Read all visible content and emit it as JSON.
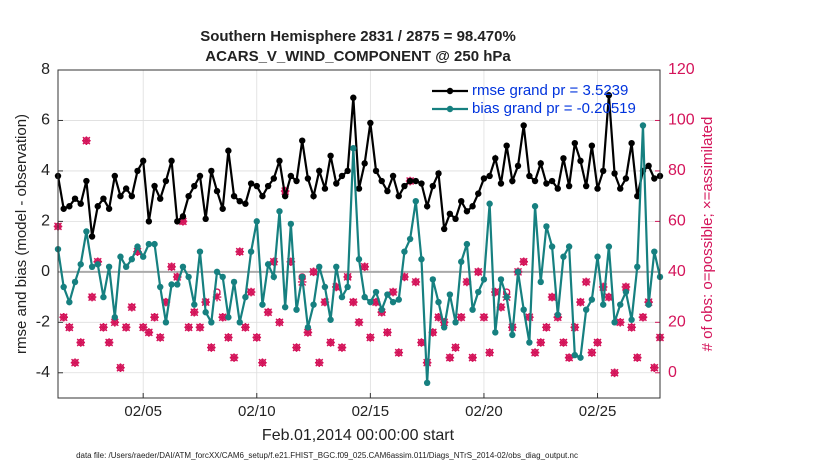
{
  "chart_data": {
    "type": "line",
    "title": "Southern Hemisphere 2831 / 2875 = 98.470%",
    "subtitle": "ACARS_V_WIND_COMPONENT @ 250 hPa",
    "xlabel": "Feb.01,2014 00:00:00 start",
    "ylabel": "rmse and bias (model - observation)",
    "y2label": "# of obs: o=possible; ×=assimilated",
    "footnote": "data file: /Users/raeder/DAI/ATM_forcXX/CAM6_setup/f.e21.FHIST_BGC.f09_025.CAM6assim.011/Diags_NTrS_2014-02/obs_diag_output.nc",
    "xlim": [
      1.25,
      27.75
    ],
    "xticks": [
      {
        "value": 5,
        "label": "02/05"
      },
      {
        "value": 10,
        "label": "02/10"
      },
      {
        "value": 15,
        "label": "02/15"
      },
      {
        "value": 20,
        "label": "02/20"
      },
      {
        "value": 25,
        "label": "02/25"
      }
    ],
    "ylim": [
      -5,
      8
    ],
    "yticks": [
      -4,
      -2,
      0,
      2,
      4,
      6,
      8
    ],
    "y2lim": [
      -10,
      120
    ],
    "y2ticks": [
      0,
      20,
      40,
      60,
      80,
      100,
      120
    ],
    "zero_line": 0,
    "grid": true,
    "legend": "upper right",
    "x": [
      1.25,
      1.5,
      1.75,
      2,
      2.25,
      2.5,
      2.75,
      3,
      3.25,
      3.5,
      3.75,
      4,
      4.25,
      4.5,
      4.75,
      5,
      5.25,
      5.5,
      5.75,
      6,
      6.25,
      6.5,
      6.75,
      7,
      7.25,
      7.5,
      7.75,
      8,
      8.25,
      8.5,
      8.75,
      9,
      9.25,
      9.5,
      9.75,
      10,
      10.25,
      10.5,
      10.75,
      11,
      11.25,
      11.5,
      11.75,
      12,
      12.25,
      12.5,
      12.75,
      13,
      13.25,
      13.5,
      13.75,
      14,
      14.25,
      14.5,
      14.75,
      15,
      15.25,
      15.5,
      15.75,
      16,
      16.25,
      16.5,
      16.75,
      17,
      17.25,
      17.5,
      17.75,
      18,
      18.25,
      18.5,
      18.75,
      19,
      19.25,
      19.5,
      19.75,
      20,
      20.25,
      20.5,
      20.75,
      21,
      21.25,
      21.5,
      21.75,
      22,
      22.25,
      22.5,
      22.75,
      23,
      23.25,
      23.5,
      23.75,
      24,
      24.25,
      24.5,
      24.75,
      25,
      25.25,
      25.5,
      25.75,
      26,
      26.25,
      26.5,
      26.75,
      27,
      27.25,
      27.5,
      27.75
    ],
    "series": [
      {
        "name": "rmse grand pr = 3.5239",
        "color": "#000000",
        "marker": "filled-circle",
        "values": [
          3.8,
          2.5,
          2.6,
          2.9,
          2.7,
          3.6,
          1.4,
          2.6,
          2.9,
          2.5,
          3.8,
          3.0,
          3.3,
          3.0,
          4.0,
          4.4,
          2.0,
          3.4,
          2.9,
          3.6,
          4.4,
          2.0,
          2.2,
          3.0,
          3.4,
          3.8,
          2.1,
          4.0,
          3.2,
          2.5,
          4.8,
          3.0,
          2.8,
          2.7,
          3.5,
          3.4,
          3.0,
          3.4,
          3.7,
          4.4,
          3.0,
          3.8,
          3.6,
          5.2,
          3.7,
          3.0,
          4.0,
          3.3,
          4.6,
          3.5,
          3.8,
          4.0,
          6.9,
          3.3,
          4.3,
          5.9,
          4.0,
          3.6,
          3.2,
          3.8,
          3.0,
          3.4,
          3.6,
          3.6,
          3.5,
          2.6,
          3.4,
          3.9,
          1.7,
          2.3,
          2.1,
          2.8,
          2.4,
          2.6,
          3.1,
          3.7,
          3.8,
          4.5,
          3.5,
          5.0,
          3.6,
          4.2,
          5.8,
          3.8,
          3.6,
          4.3,
          3.5,
          3.6,
          3.3,
          4.5,
          3.4,
          5.1,
          4.4,
          3.4,
          5.0,
          3.3,
          4.0,
          7.0,
          3.9,
          3.3,
          3.7,
          5.1,
          3.0,
          4.0,
          4.2,
          3.7,
          3.8
        ]
      },
      {
        "name": "bias grand pr = -0.20519",
        "color": "#168080",
        "marker": "filled-circle",
        "values": [
          0.9,
          -0.6,
          -1.2,
          -0.4,
          0.3,
          1.6,
          0.2,
          0.3,
          -1.0,
          0.2,
          -1.8,
          0.6,
          0.2,
          0.5,
          1.0,
          0.6,
          1.1,
          1.1,
          -0.6,
          -2.0,
          -0.5,
          -0.5,
          0.2,
          -0.2,
          -1.3,
          0.8,
          -1.6,
          -2.0,
          0.0,
          -0.2,
          -1.8,
          -0.4,
          -2.0,
          -1.0,
          0.8,
          2.0,
          -1.3,
          0.3,
          -0.2,
          2.4,
          -1.4,
          1.9,
          -1.5,
          -0.2,
          -2.2,
          -1.3,
          0.2,
          -0.6,
          -1.9,
          0.2,
          -1.0,
          -0.6,
          4.9,
          0.5,
          -1.0,
          -1.2,
          -0.8,
          -1.5,
          -0.9,
          -1.2,
          -1.1,
          0.8,
          1.3,
          2.8,
          0.5,
          -4.4,
          -0.3,
          -1.2,
          -2.2,
          -0.9,
          -2.0,
          0.4,
          1.1,
          -1.5,
          -0.8,
          -0.3,
          2.7,
          -2.4,
          -0.3,
          -1.0,
          -2.5,
          0.0,
          -1.5,
          -2.8,
          2.6,
          -0.4,
          1.8,
          1.0,
          -1.7,
          0.6,
          1.0,
          -3.3,
          -3.4,
          -1.5,
          -1.1,
          0.6,
          -1.3,
          1.0,
          -2.0,
          -1.3,
          -0.8,
          -1.9,
          0.2,
          5.8,
          -1.3,
          0.8,
          -0.2
        ]
      },
      {
        "color": "#d4145a",
        "marker": "open-circle",
        "axis": "y2",
        "lines": false,
        "values": [
          58,
          22,
          18,
          4,
          12,
          92,
          30,
          44,
          18,
          12,
          20,
          2,
          18,
          26,
          48,
          18,
          16,
          22,
          14,
          28,
          42,
          38,
          60,
          18,
          24,
          18,
          28,
          10,
          32,
          22,
          14,
          6,
          48,
          18,
          32,
          14,
          4,
          24,
          44,
          20,
          72,
          44,
          10,
          38,
          16,
          40,
          4,
          28,
          12,
          34,
          10,
          38,
          28,
          20,
          42,
          14,
          28,
          24,
          16,
          32,
          8,
          38,
          76,
          36,
          12,
          4,
          16,
          22,
          20,
          6,
          10,
          22,
          36,
          6,
          40,
          22,
          8,
          32,
          26,
          32,
          18,
          40,
          44,
          22,
          8,
          12,
          18,
          30,
          22,
          12,
          6,
          18,
          28,
          36,
          8,
          12,
          34,
          30,
          0,
          20,
          34,
          18,
          6,
          22,
          28,
          2,
          14
        ]
      },
      {
        "color": "#d4145a",
        "marker": "asterisk",
        "axis": "y2",
        "lines": false,
        "values": [
          58,
          22,
          18,
          4,
          12,
          92,
          30,
          44,
          18,
          12,
          20,
          2,
          18,
          26,
          48,
          18,
          16,
          22,
          14,
          28,
          42,
          38,
          60,
          18,
          24,
          18,
          28,
          10,
          30,
          22,
          14,
          6,
          48,
          18,
          32,
          14,
          4,
          24,
          44,
          20,
          72,
          44,
          10,
          36,
          16,
          40,
          4,
          28,
          12,
          34,
          10,
          38,
          28,
          20,
          42,
          14,
          28,
          24,
          16,
          32,
          8,
          38,
          76,
          36,
          12,
          4,
          16,
          22,
          20,
          6,
          10,
          22,
          36,
          6,
          40,
          22,
          8,
          32,
          26,
          30,
          18,
          40,
          44,
          22,
          8,
          12,
          18,
          30,
          22,
          12,
          6,
          18,
          28,
          36,
          8,
          12,
          34,
          30,
          0,
          20,
          34,
          18,
          6,
          22,
          28,
          2,
          14
        ]
      }
    ]
  }
}
